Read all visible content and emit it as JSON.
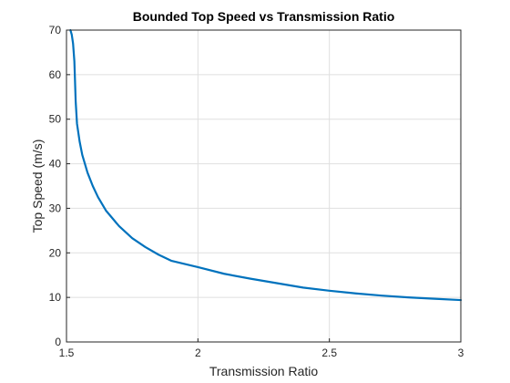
{
  "chart_data": {
    "type": "line",
    "title": "Bounded Top Speed vs Transmission Ratio",
    "xlabel": "Transmission Ratio",
    "ylabel": "Top Speed (m/s)",
    "xlim": [
      1.5,
      3
    ],
    "ylim": [
      0,
      70
    ],
    "xticks": [
      1.5,
      2,
      2.5,
      3
    ],
    "xtick_labels": [
      "1.5",
      "2",
      "2.5",
      "3"
    ],
    "yticks": [
      0,
      10,
      20,
      30,
      40,
      50,
      60,
      70
    ],
    "ytick_labels": [
      "0",
      "10",
      "20",
      "30",
      "40",
      "50",
      "60",
      "70"
    ],
    "grid": true,
    "series": [
      {
        "color": "#0072bd",
        "x": [
          1.515,
          1.52,
          1.525,
          1.53,
          1.535,
          1.54,
          1.55,
          1.56,
          1.57,
          1.58,
          1.6,
          1.62,
          1.65,
          1.7,
          1.75,
          1.8,
          1.85,
          1.9,
          2.0,
          2.1,
          2.2,
          2.3,
          2.4,
          2.5,
          2.6,
          2.7,
          2.8,
          2.9,
          3.0
        ],
        "y": [
          70,
          69,
          67,
          63,
          54,
          49,
          45,
          42,
          40,
          38,
          35,
          32.5,
          29.5,
          26,
          23.3,
          21.3,
          19.6,
          18.2,
          16.8,
          15.3,
          14.2,
          13.2,
          12.2,
          11.5,
          10.9,
          10.4,
          10.0,
          9.7,
          9.4
        ]
      }
    ]
  }
}
